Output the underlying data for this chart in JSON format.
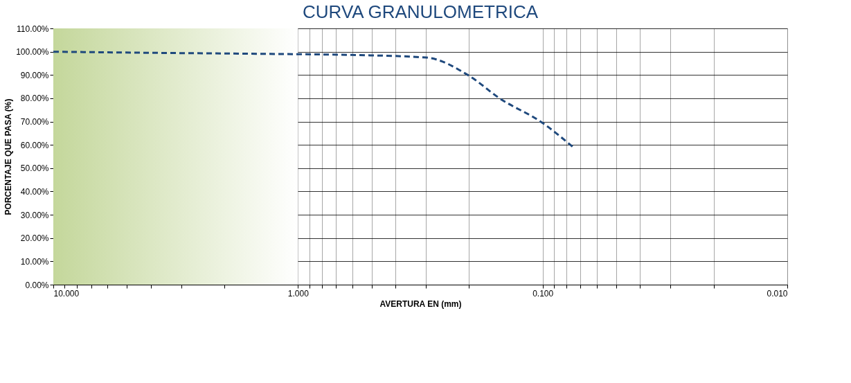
{
  "chart_data": {
    "type": "line",
    "title": "CURVA GRANULOMETRICA",
    "xlabel": "AVERTURA EN (mm)",
    "ylabel": "PORCENTAJE QUE PASA (%)",
    "x": [
      10,
      4.75,
      2.36,
      1.18,
      0.6,
      0.3,
      0.2,
      0.15,
      0.1,
      0.075
    ],
    "series": [
      {
        "color": "#1f497d",
        "values": [
          100,
          99.6,
          99.3,
          99.0,
          98.6,
          97.5,
          89.7,
          80,
          69.4,
          59
        ]
      }
    ],
    "xlim": [
      10,
      0.01
    ],
    "log": "x",
    "xticks": [
      {
        "value": 10,
        "label": "10.000"
      },
      {
        "value": 9,
        "label": null
      },
      {
        "value": 8,
        "label": null
      },
      {
        "value": 7,
        "label": null
      },
      {
        "value": 6,
        "label": null
      },
      {
        "value": 5,
        "label": null
      },
      {
        "value": 4,
        "label": null
      },
      {
        "value": 3,
        "label": null
      },
      {
        "value": 2,
        "label": null
      },
      {
        "value": 1,
        "label": "1.000"
      },
      {
        "value": 0.9,
        "label": null
      },
      {
        "value": 0.8,
        "label": null
      },
      {
        "value": 0.7,
        "label": null
      },
      {
        "value": 0.6,
        "label": null
      },
      {
        "value": 0.5,
        "label": null
      },
      {
        "value": 0.4,
        "label": null
      },
      {
        "value": 0.3,
        "label": null
      },
      {
        "value": 0.2,
        "label": null
      },
      {
        "value": 0.1,
        "label": "0.100"
      },
      {
        "value": 0.09,
        "label": null
      },
      {
        "value": 0.08,
        "label": null
      },
      {
        "value": 0.07,
        "label": null
      },
      {
        "value": 0.06,
        "label": null
      },
      {
        "value": 0.05,
        "label": null
      },
      {
        "value": 0.04,
        "label": null
      },
      {
        "value": 0.03,
        "label": null
      },
      {
        "value": 0.02,
        "label": null
      },
      {
        "value": 0.01,
        "label": "0.010"
      }
    ],
    "ylim": [
      0,
      110
    ],
    "yticks": [
      {
        "value": 0,
        "label": "0.00%"
      },
      {
        "value": 10,
        "label": "10.00%"
      },
      {
        "value": 20,
        "label": "20.00%"
      },
      {
        "value": 30,
        "label": "30.00%"
      },
      {
        "value": 40,
        "label": "40.00%"
      },
      {
        "value": 50,
        "label": "50.00%"
      },
      {
        "value": 60,
        "label": "60.00%"
      },
      {
        "value": 70,
        "label": "70.00%"
      },
      {
        "value": 80,
        "label": "80.00%"
      },
      {
        "value": 90,
        "label": "90.00%"
      },
      {
        "value": 100,
        "label": "100.00%"
      },
      {
        "value": 110,
        "label": "110.00%"
      }
    ],
    "bands": [
      {
        "axis": "x",
        "from": 10,
        "to": 1,
        "color": "#c4d79b"
      }
    ],
    "grid": true,
    "marker": "none",
    "line_style": "dashed"
  }
}
